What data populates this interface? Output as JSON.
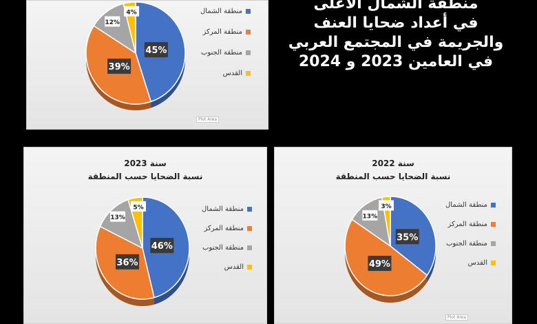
{
  "headline": {
    "line1": "منطقة الشمال الأعلى",
    "line2": "في أعداد ضحايا العنف",
    "line3": "والجريمة في المجتمع العربي",
    "line4": "في العامين 2023 و 2024"
  },
  "colors": {
    "north": "#4472C4",
    "center": "#ED7D31",
    "south": "#A5A5A5",
    "quds": "#FFC000"
  },
  "chart_data": [
    {
      "type": "pie",
      "title": "",
      "subtitle": "",
      "categories": [
        "منطقة الشمال",
        "منطقة المركز",
        "منطقة الجنوب",
        "القدس"
      ],
      "values": [
        45,
        39,
        12,
        4
      ],
      "labels": [
        "45%",
        "39%",
        "12%",
        "4%"
      ],
      "legend": "right",
      "plot_area_label": "Plot Area"
    },
    {
      "type": "pie",
      "title": "نسبة الضحايا حسب المنطقة",
      "subtitle": "سنة 2023",
      "categories": [
        "منطقة الشمال",
        "منطقة المركز",
        "منطقة الجنوب",
        "القدس"
      ],
      "values": [
        46,
        36,
        13,
        5
      ],
      "labels": [
        "46%",
        "36%",
        "13%",
        "5%"
      ],
      "legend": "right",
      "plot_area_label": "Plot Area"
    },
    {
      "type": "pie",
      "title": "نسبة الضحايا حسب المنطقة",
      "subtitle": "سنة 2022",
      "categories": [
        "منطقة الشمال",
        "منطقة المركز",
        "منطقة الجنوب",
        "القدس"
      ],
      "values": [
        35,
        49,
        13,
        3
      ],
      "labels": [
        "35%",
        "49%",
        "13%",
        "3%"
      ],
      "legend": "right",
      "plot_area_label": "Plot Area"
    }
  ]
}
